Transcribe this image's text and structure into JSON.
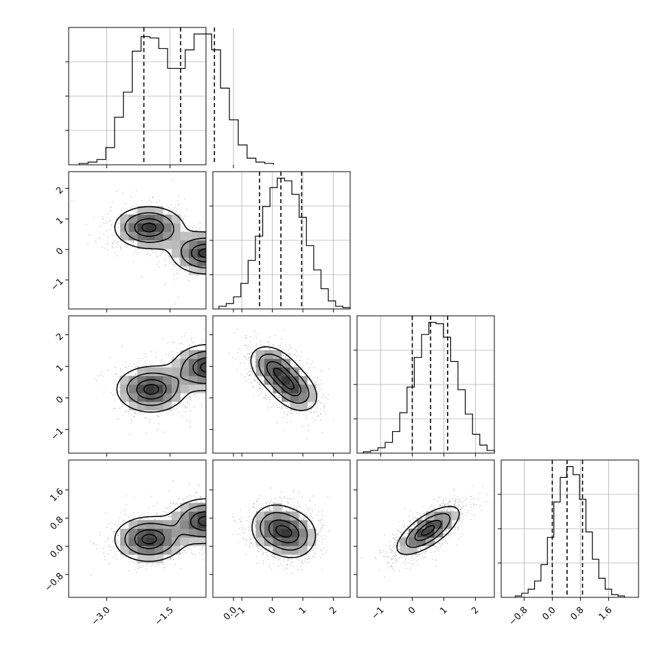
{
  "chart_data": {
    "type": "corner",
    "grid": true,
    "parameters": [
      {
        "ticks": [
          -3.0,
          -1.5,
          0.0
        ],
        "tick_labels": [
          "−3.0",
          "−1.5",
          "0.0"
        ],
        "range": [
          -3.9,
          -0.65
        ],
        "quantiles": [
          -2.12,
          -1.25,
          -0.45
        ],
        "hist": [
          0.01,
          0.02,
          0.04,
          0.13,
          0.36,
          0.55,
          0.86,
          0.97,
          0.96,
          0.88,
          0.73,
          0.73,
          0.87,
          0.99,
          0.99,
          0.87,
          0.58,
          0.34,
          0.15,
          0.05,
          0.02,
          0.01
        ],
        "hist_range": [
          -3.65,
          0.95
        ]
      },
      {
        "ticks": [
          -1,
          0,
          1,
          2
        ],
        "tick_labels": [
          "−1",
          "0",
          "1",
          "2"
        ],
        "range": [
          -1.95,
          2.55
        ],
        "quantiles": [
          -0.42,
          0.28,
          0.96
        ],
        "hist": [
          0.02,
          0.04,
          0.09,
          0.19,
          0.36,
          0.54,
          0.76,
          0.9,
          0.97,
          0.95,
          0.85,
          0.68,
          0.47,
          0.29,
          0.15,
          0.06,
          0.02,
          0.01
        ],
        "hist_range": [
          -1.75,
          2.55
        ]
      },
      {
        "ticks": [
          -1,
          0,
          1,
          2
        ],
        "tick_labels": [
          "−1",
          "0",
          "1",
          "2"
        ],
        "range": [
          -1.75,
          2.6
        ],
        "quantiles": [
          0.0,
          0.58,
          1.12
        ],
        "hist": [
          0.01,
          0.02,
          0.04,
          0.08,
          0.16,
          0.3,
          0.49,
          0.71,
          0.88,
          0.97,
          0.96,
          0.86,
          0.68,
          0.47,
          0.29,
          0.14,
          0.06,
          0.02
        ],
        "hist_range": [
          -1.55,
          2.6
        ]
      },
      {
        "ticks": [
          -0.8,
          0.0,
          0.8,
          1.6
        ],
        "tick_labels": [
          "−0.8",
          "0.0",
          "0.8",
          "1.6"
        ],
        "range": [
          -1.45,
          2.45
        ],
        "quantiles": [
          0.0,
          0.42,
          0.86
        ],
        "hist": [
          0.01,
          0.03,
          0.06,
          0.12,
          0.24,
          0.44,
          0.7,
          0.88,
          0.96,
          0.9,
          0.72,
          0.48,
          0.28,
          0.14,
          0.06,
          0.02,
          0.01
        ],
        "hist_range": [
          -1.05,
          2.05
        ]
      }
    ],
    "correlations": [
      {
        "x": 0,
        "y": 1,
        "modes": [
          {
            "cx": -2.0,
            "cy": 0.72,
            "sx": 0.45,
            "sy": 0.38,
            "rho": 0.0,
            "w": 1
          },
          {
            "cx": -0.65,
            "cy": -0.12,
            "sx": 0.45,
            "sy": 0.38,
            "rho": 0.0,
            "w": 1
          }
        ]
      },
      {
        "x": 0,
        "y": 2,
        "modes": [
          {
            "cx": -1.95,
            "cy": 0.27,
            "sx": 0.45,
            "sy": 0.4,
            "rho": 0.0,
            "w": 1
          },
          {
            "cx": -0.6,
            "cy": 0.97,
            "sx": 0.45,
            "sy": 0.4,
            "rho": 0.0,
            "w": 1
          }
        ]
      },
      {
        "x": 1,
        "y": 2,
        "modes": [
          {
            "cx": 0.05,
            "cy": 0.95,
            "sx": 0.45,
            "sy": 0.4,
            "rho": -0.35,
            "w": 1
          },
          {
            "cx": 0.7,
            "cy": 0.27,
            "sx": 0.45,
            "sy": 0.4,
            "rho": -0.35,
            "w": 1
          }
        ]
      },
      {
        "x": 0,
        "y": 3,
        "modes": [
          {
            "cx": -2.0,
            "cy": 0.2,
            "sx": 0.45,
            "sy": 0.35,
            "rho": 0.0,
            "w": 1
          },
          {
            "cx": -0.65,
            "cy": 0.72,
            "sx": 0.45,
            "sy": 0.35,
            "rho": 0.0,
            "w": 1
          }
        ]
      },
      {
        "x": 1,
        "y": 3,
        "modes": [
          {
            "cx": 0.05,
            "cy": 0.55,
            "sx": 0.45,
            "sy": 0.38,
            "rho": 0.0,
            "w": 1
          },
          {
            "cx": 0.7,
            "cy": 0.3,
            "sx": 0.45,
            "sy": 0.38,
            "rho": 0.0,
            "w": 1
          }
        ]
      },
      {
        "x": 2,
        "y": 3,
        "modes": [
          {
            "cx": 0.5,
            "cy": 0.45,
            "sx": 0.55,
            "sy": 0.38,
            "rho": 0.7,
            "w": 1
          }
        ]
      }
    ]
  }
}
